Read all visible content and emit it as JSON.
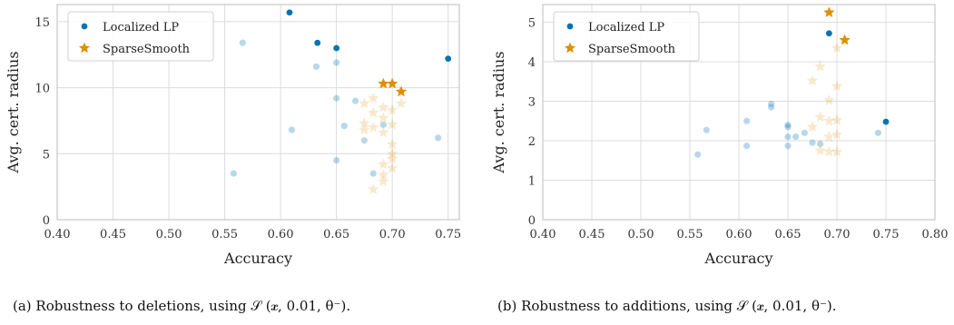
{
  "chart_data": [
    {
      "type": "scatter",
      "panel": "a",
      "xlabel": "Accuracy",
      "ylabel": "Avg. cert. radius",
      "xlim": [
        0.4,
        0.76
      ],
      "ylim": [
        0,
        16.3
      ],
      "xticks": [
        "0.40",
        "0.45",
        "0.50",
        "0.55",
        "0.60",
        "0.65",
        "0.70",
        "0.75"
      ],
      "yticks": [
        "0",
        "5",
        "10",
        "15"
      ],
      "xtick_values": [
        0.4,
        0.45,
        0.5,
        0.55,
        0.6,
        0.65,
        0.7,
        0.75
      ],
      "ytick_values": [
        0,
        5,
        10,
        15
      ],
      "grid": true,
      "legend_position": "top-left",
      "caption": "(a) Robustness to deletions, using 𝒮 (𝒙, 0.01, θ⁻).",
      "series": [
        {
          "name": "Localized LP",
          "marker": "circle",
          "color": "#0173b2",
          "pareto": [
            [
              0.608,
              15.7
            ],
            [
              0.633,
              13.4
            ],
            [
              0.65,
              13.0
            ],
            [
              0.75,
              12.2
            ]
          ],
          "faded": [
            [
              0.566,
              13.4
            ],
            [
              0.632,
              11.6
            ],
            [
              0.65,
              11.9
            ],
            [
              0.65,
              9.2
            ],
            [
              0.667,
              9.0
            ],
            [
              0.657,
              7.1
            ],
            [
              0.61,
              6.8
            ],
            [
              0.675,
              6.0
            ],
            [
              0.65,
              4.5
            ],
            [
              0.558,
              3.5
            ],
            [
              0.683,
              3.5
            ],
            [
              0.741,
              6.2
            ],
            [
              0.692,
              7.2
            ]
          ]
        },
        {
          "name": "SparseSmooth",
          "marker": "star",
          "color": "#de8f05",
          "pareto": [
            [
              0.692,
              10.3
            ],
            [
              0.7,
              10.3
            ],
            [
              0.708,
              9.7
            ]
          ],
          "faded": [
            [
              0.675,
              8.8
            ],
            [
              0.683,
              9.2
            ],
            [
              0.692,
              8.5
            ],
            [
              0.7,
              8.3
            ],
            [
              0.708,
              8.8
            ],
            [
              0.683,
              8.1
            ],
            [
              0.675,
              7.3
            ],
            [
              0.692,
              7.7
            ],
            [
              0.7,
              7.2
            ],
            [
              0.683,
              7.0
            ],
            [
              0.675,
              6.8
            ],
            [
              0.692,
              6.6
            ],
            [
              0.7,
              5.7
            ],
            [
              0.7,
              5.0
            ],
            [
              0.692,
              4.2
            ],
            [
              0.7,
              3.9
            ],
            [
              0.692,
              3.4
            ],
            [
              0.692,
              2.9
            ],
            [
              0.683,
              2.3
            ],
            [
              0.7,
              4.6
            ]
          ]
        }
      ]
    },
    {
      "type": "scatter",
      "panel": "b",
      "xlabel": "Accuracy",
      "ylabel": "Avg. cert. radius",
      "xlim": [
        0.4,
        0.8
      ],
      "ylim": [
        0,
        5.45
      ],
      "xticks": [
        "0.40",
        "0.45",
        "0.50",
        "0.55",
        "0.60",
        "0.65",
        "0.70",
        "0.75",
        "0.80"
      ],
      "yticks": [
        "0",
        "1",
        "2",
        "3",
        "4",
        "5"
      ],
      "xtick_values": [
        0.4,
        0.45,
        0.5,
        0.55,
        0.6,
        0.65,
        0.7,
        0.75,
        0.8
      ],
      "ytick_values": [
        0,
        1,
        2,
        3,
        4,
        5
      ],
      "grid": true,
      "legend_position": "top-left",
      "caption": "(b) Robustness to additions, using 𝒮 (𝒙, 0.01, θ⁻).",
      "series": [
        {
          "name": "Localized LP",
          "marker": "circle",
          "color": "#0173b2",
          "pareto": [
            [
              0.692,
              4.72
            ],
            [
              0.75,
              2.48
            ]
          ],
          "faded": [
            [
              0.558,
              1.65
            ],
            [
              0.567,
              2.27
            ],
            [
              0.608,
              2.5
            ],
            [
              0.608,
              1.87
            ],
            [
              0.633,
              2.93
            ],
            [
              0.633,
              2.85
            ],
            [
              0.65,
              2.4
            ],
            [
              0.65,
              2.35
            ],
            [
              0.65,
              2.1
            ],
            [
              0.65,
              1.87
            ],
            [
              0.658,
              2.1
            ],
            [
              0.667,
              2.2
            ],
            [
              0.675,
              1.95
            ],
            [
              0.683,
              1.92
            ],
            [
              0.742,
              2.2
            ]
          ]
        },
        {
          "name": "SparseSmooth",
          "marker": "star",
          "color": "#de8f05",
          "pareto": [
            [
              0.692,
              5.25
            ],
            [
              0.708,
              4.55
            ]
          ],
          "faded": [
            [
              0.7,
              4.35
            ],
            [
              0.683,
              3.88
            ],
            [
              0.675,
              3.52
            ],
            [
              0.7,
              3.38
            ],
            [
              0.692,
              3.02
            ],
            [
              0.683,
              2.6
            ],
            [
              0.692,
              2.5
            ],
            [
              0.7,
              2.52
            ],
            [
              0.675,
              2.35
            ],
            [
              0.7,
              2.15
            ],
            [
              0.692,
              2.1
            ],
            [
              0.683,
              1.75
            ],
            [
              0.692,
              1.72
            ],
            [
              0.7,
              1.72
            ]
          ]
        }
      ]
    }
  ]
}
